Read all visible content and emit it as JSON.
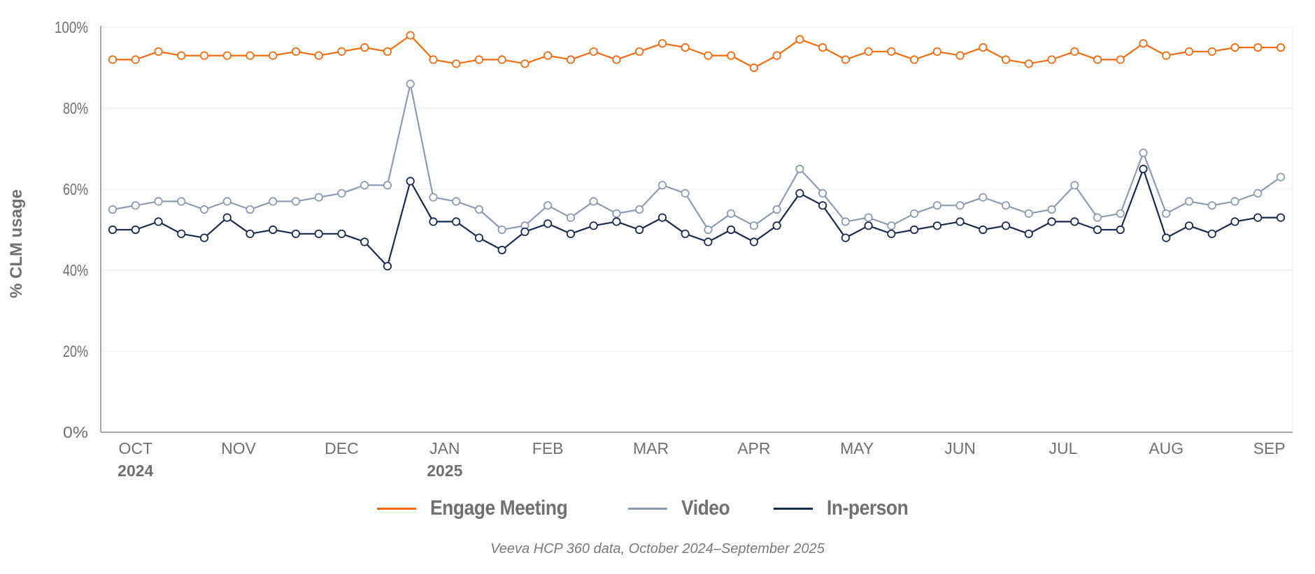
{
  "chart_data": {
    "type": "line",
    "title": "",
    "ylabel": "% CLM usage",
    "xlabel": "",
    "ylim": [
      0,
      100
    ],
    "yticks": [
      "0%",
      "20%",
      "40%",
      "60%",
      "80%",
      "100%"
    ],
    "ytick_values": [
      0,
      20,
      40,
      60,
      80,
      100
    ],
    "grid": true,
    "legend_placement": "bottom",
    "x_month_labels": [
      {
        "label": "OCT",
        "year": "2024",
        "index": 1
      },
      {
        "label": "NOV",
        "year": "",
        "index": 5.5
      },
      {
        "label": "DEC",
        "year": "",
        "index": 10
      },
      {
        "label": "JAN",
        "year": "2025",
        "index": 14.5
      },
      {
        "label": "FEB",
        "year": "",
        "index": 19
      },
      {
        "label": "MAR",
        "year": "",
        "index": 23.5
      },
      {
        "label": "APR",
        "year": "",
        "index": 28
      },
      {
        "label": "MAY",
        "year": "",
        "index": 32.5
      },
      {
        "label": "JUN",
        "year": "",
        "index": 37
      },
      {
        "label": "JUL",
        "year": "",
        "index": 41.5
      },
      {
        "label": "AUG",
        "year": "",
        "index": 46
      },
      {
        "label": "SEP",
        "year": "",
        "index": 50.5
      }
    ],
    "series": [
      {
        "name": "Engage Meeting",
        "color": "#f26b0f",
        "values": [
          92,
          92,
          94,
          93,
          93,
          93,
          93,
          93,
          94,
          93,
          94,
          95,
          94,
          98,
          92,
          91,
          92,
          92,
          91,
          93,
          92,
          94,
          92,
          94,
          96,
          95,
          93,
          93,
          90,
          93,
          97,
          95,
          92,
          94,
          94,
          92,
          94,
          93,
          95,
          92,
          91,
          92,
          94,
          92,
          92,
          96,
          93,
          94,
          94,
          95,
          95,
          95
        ]
      },
      {
        "name": "Video",
        "color": "#8e9ab4",
        "values": [
          55,
          56,
          57,
          57,
          55,
          57,
          55,
          57,
          57,
          58,
          59,
          61,
          61,
          86,
          58,
          57,
          55,
          50,
          51,
          56,
          53,
          57,
          54,
          55,
          61,
          59,
          50,
          54,
          51,
          55,
          65,
          59,
          52,
          53,
          51,
          54,
          56,
          56,
          58,
          56,
          54,
          55,
          61,
          53,
          54,
          69,
          54,
          57,
          56,
          57,
          59,
          63
        ]
      },
      {
        "name": "In-person",
        "color": "#1a2a4f",
        "values": [
          50,
          50,
          52,
          49,
          48,
          53,
          49,
          50,
          49,
          49,
          49,
          47,
          41,
          62,
          52,
          52,
          48,
          45,
          49.5,
          51.5,
          49,
          51,
          52,
          50,
          53,
          49,
          47,
          50,
          47,
          51,
          59,
          56,
          48,
          51,
          49,
          50,
          51,
          52,
          50,
          51,
          49,
          52,
          52,
          50,
          50,
          65,
          48,
          51,
          49,
          52,
          53,
          53
        ]
      }
    ]
  },
  "caption": "Veeva HCP 360 data, October 2024–September 2025"
}
